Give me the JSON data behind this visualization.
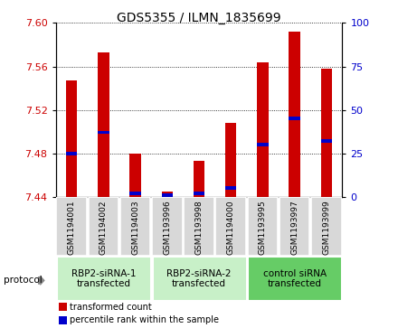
{
  "title": "GDS5355 / ILMN_1835699",
  "samples": [
    "GSM1194001",
    "GSM1194002",
    "GSM1194003",
    "GSM1193996",
    "GSM1193998",
    "GSM1194000",
    "GSM1193995",
    "GSM1193997",
    "GSM1193999"
  ],
  "red_values": [
    7.547,
    7.573,
    7.48,
    7.445,
    7.473,
    7.508,
    7.564,
    7.592,
    7.558
  ],
  "ylim_left": [
    7.44,
    7.6
  ],
  "ylim_right": [
    0,
    100
  ],
  "yticks_left": [
    7.44,
    7.48,
    7.52,
    7.56,
    7.6
  ],
  "yticks_right": [
    0,
    25,
    50,
    75,
    100
  ],
  "bar_base": 7.44,
  "blue_percentile": [
    25,
    37,
    2,
    1,
    2,
    5,
    30,
    45,
    32
  ],
  "group_boundaries": [
    {
      "start": 0,
      "end": 3,
      "label": "RBP2-siRNA-1\ntransfected",
      "color": "#c8f0c8"
    },
    {
      "start": 3,
      "end": 6,
      "label": "RBP2-siRNA-2\ntransfected",
      "color": "#c8f0c8"
    },
    {
      "start": 6,
      "end": 9,
      "label": "control siRNA\ntransfected",
      "color": "#66cc66"
    }
  ],
  "bar_color_red": "#cc0000",
  "bar_color_blue": "#0000cc",
  "bar_width": 0.35,
  "left_tick_color": "#cc0000",
  "right_tick_color": "#0000cc",
  "protocol_label": "protocol",
  "legend": [
    {
      "color": "#cc0000",
      "label": "transformed count"
    },
    {
      "color": "#0000cc",
      "label": "percentile rank within the sample"
    }
  ]
}
